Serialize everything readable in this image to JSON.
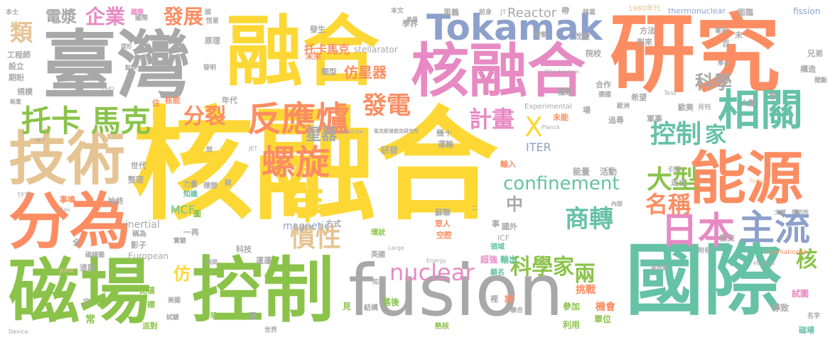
{
  "palette": {
    "yellow": "#fdd835",
    "gray": "#a8a8a8",
    "green": "#8bc34a",
    "orange": "#fc8d62",
    "blue": "#8da0cb",
    "teal": "#66c2a5",
    "pink": "#e78ac3",
    "tan": "#e5c494"
  },
  "words": [
    {
      "text": "核融合"
    },
    {
      "text": "融合"
    },
    {
      "text": "研究"
    },
    {
      "text": "臺灣"
    },
    {
      "text": "國際"
    },
    {
      "text": "fusion"
    },
    {
      "text": "控制"
    },
    {
      "text": "磁場"
    },
    {
      "text": "核融合"
    },
    {
      "text": "技術"
    },
    {
      "text": "分為"
    },
    {
      "text": "能源"
    },
    {
      "text": "Tokamak"
    },
    {
      "text": "反應爐"
    },
    {
      "text": "日本"
    },
    {
      "text": "主流"
    },
    {
      "text": "相關"
    },
    {
      "text": "托卡"
    },
    {
      "text": "馬克"
    },
    {
      "text": "螺旋"
    },
    {
      "text": "控制"
    },
    {
      "text": "科學家"
    },
    {
      "text": "nuclear"
    },
    {
      "text": "confinement"
    },
    {
      "text": "商轉"
    },
    {
      "text": "大型"
    },
    {
      "text": "名稱"
    },
    {
      "text": "年"
    },
    {
      "text": "慣性"
    },
    {
      "text": "分裂"
    },
    {
      "text": "發電"
    },
    {
      "text": "計畫"
    },
    {
      "text": "企業"
    },
    {
      "text": "發展"
    },
    {
      "text": "電漿"
    },
    {
      "text": "類"
    },
    {
      "text": "星器"
    },
    {
      "text": "仿星器"
    },
    {
      "text": "兩"
    },
    {
      "text": "科學"
    },
    {
      "text": "家"
    },
    {
      "text": "X"
    },
    {
      "text": "核"
    },
    {
      "text": "中"
    },
    {
      "text": "仿"
    },
    {
      "text": "托卡馬克"
    },
    {
      "text": "Reactor"
    },
    {
      "text": "ITER"
    },
    {
      "text": "magnetic"
    },
    {
      "text": "MCF"
    },
    {
      "text": "inertial"
    },
    {
      "text": "European"
    },
    {
      "text": "Experimental"
    },
    {
      "text": "stellarator"
    },
    {
      "text": "thermonuclear"
    },
    {
      "text": "fission"
    },
    {
      "text": "1960年代"
    },
    {
      "text": "研發"
    },
    {
      "text": "能量"
    },
    {
      "text": "活動"
    },
    {
      "text": "挑戰"
    },
    {
      "text": "機會"
    },
    {
      "text": "參加"
    },
    {
      "text": "單位"
    },
    {
      "text": "利用"
    },
    {
      "text": "落後"
    },
    {
      "text": "結構"
    },
    {
      "text": "熱核"
    },
    {
      "text": "超強"
    },
    {
      "text": "輸出"
    },
    {
      "text": "顧名"
    },
    {
      "text": "領域"
    },
    {
      "text": "試圖"
    },
    {
      "text": "導致"
    },
    {
      "text": "磁場"
    },
    {
      "text": "名字"
    },
    {
      "text": "道路"
    },
    {
      "text": "比値"
    },
    {
      "text": "目標"
    },
    {
      "text": "常"
    },
    {
      "text": "派對"
    },
    {
      "text": "試驗"
    },
    {
      "text": "最早"
    },
    {
      "text": "世界"
    },
    {
      "text": "見"
    },
    {
      "text": "始終"
    },
    {
      "text": "整理"
    },
    {
      "text": "世代"
    },
    {
      "text": "影子"
    },
    {
      "text": "稱為"
    },
    {
      "text": "一再"
    },
    {
      "text": "圖"
    },
    {
      "text": "力量"
    },
    {
      "text": "知識"
    },
    {
      "text": "理想"
    },
    {
      "text": "說"
    },
    {
      "text": "事鳴"
    },
    {
      "text": "工程師"
    },
    {
      "text": "設立"
    },
    {
      "text": "期盼"
    },
    {
      "text": "規模"
    },
    {
      "text": "本士"
    },
    {
      "text": "國際"
    },
    {
      "text": "原理"
    },
    {
      "text": "發明"
    },
    {
      "text": "未來"
    },
    {
      "text": "類型"
    },
    {
      "text": "發生"
    },
    {
      "text": "學界"
    },
    {
      "text": "思義"
    },
    {
      "text": "前身"
    },
    {
      "text": "改變"
    },
    {
      "text": "院校"
    },
    {
      "text": "方法"
    },
    {
      "text": "到來"
    },
    {
      "text": "著名"
    },
    {
      "text": "百"
    },
    {
      "text": "未"
    },
    {
      "text": "兄弟"
    },
    {
      "text": "想"
    },
    {
      "text": "間斷"
    },
    {
      "text": "構造"
    },
    {
      "text": "人類"
    },
    {
      "text": "月刊"
    },
    {
      "text": "歐美"
    },
    {
      "text": "軍事"
    },
    {
      "text": "希望"
    },
    {
      "text": "追尋"
    },
    {
      "text": "歐洲"
    },
    {
      "text": "德國"
    },
    {
      "text": "種類"
    },
    {
      "text": "合作"
    },
    {
      "text": "未能"
    },
    {
      "text": "引頸"
    },
    {
      "text": "走出"
    },
    {
      "text": "輸入"
    },
    {
      "text": "蘇聯"
    },
    {
      "text": "眾人"
    },
    {
      "text": "空腔"
    },
    {
      "text": "國外"
    },
    {
      "text": "事"
    },
    {
      "text": "ICF"
    },
    {
      "text": "英國"
    },
    {
      "text": "環狀"
    },
    {
      "text": "運運"
    },
    {
      "text": "科技"
    },
    {
      "text": "方式"
    },
    {
      "text": "磁線圈"
    },
    {
      "text": "實驗"
    },
    {
      "text": "全"
    },
    {
      "text": "文"
    },
    {
      "text": "美國"
    },
    {
      "text": "國"
    },
    {
      "text": "知名"
    },
    {
      "text": "裡"
    },
    {
      "text": "期"
    },
    {
      "text": "聯合"
    },
    {
      "text": "附有"
    },
    {
      "text": "倭文"
    },
    {
      "text": "文獻"
    },
    {
      "text": "研究所"
    },
    {
      "text": "Torus"
    },
    {
      "text": "International"
    },
    {
      "text": "面臨"
    },
    {
      "text": "絡寫"
    },
    {
      "text": "帶"
    },
    {
      "text": "JT"
    },
    {
      "text": "本文"
    },
    {
      "text": "頭"
    },
    {
      "text": "住"
    },
    {
      "text": "核能"
    },
    {
      "text": "國際"
    },
    {
      "text": "恆星"
    },
    {
      "text": "年代"
    },
    {
      "text": "幾十"
    },
    {
      "text": "運輸"
    },
    {
      "text": "寄類"
    },
    {
      "text": "Test"
    },
    {
      "text": "Planck"
    },
    {
      "text": "Institute"
    },
    {
      "text": "馬克斯普朗克研究所"
    },
    {
      "text": "Wendelstein"
    },
    {
      "text": "Helical"
    },
    {
      "text": "Large"
    },
    {
      "text": "Joint"
    },
    {
      "text": "Max"
    },
    {
      "text": "TFTR"
    },
    {
      "text": "JET"
    },
    {
      "text": "W7"
    },
    {
      "text": "LHD"
    },
    {
      "text": "Device"
    },
    {
      "text": "Energy"
    },
    {
      "text": "學者"
    },
    {
      "text": "默默"
    },
    {
      "text": "環形"
    },
    {
      "text": "裝置"
    },
    {
      "text": "二"
    },
    {
      "text": "場"
    },
    {
      "text": "內部"
    },
    {
      "text": "無間"
    },
    {
      "text": "差異"
    },
    {
      "text": "問"
    },
    {
      "text": "高效能"
    }
  ]
}
